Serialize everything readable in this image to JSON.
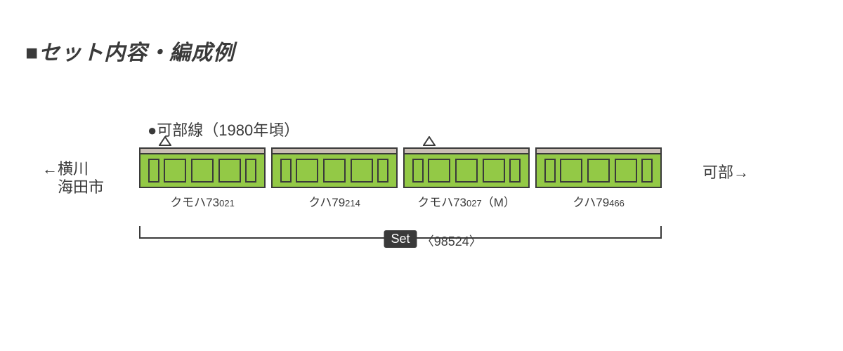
{
  "heading": "■セット内容・編成例",
  "subtitle": "●可部線（1980年頃）",
  "left_destination_line1": "←横川",
  "left_destination_line2": "　海田市",
  "right_destination": "可部→",
  "set_badge": "Set",
  "set_code": "〈98524〉",
  "cars": [
    {
      "label_main": "クモハ73",
      "label_sub": "021",
      "has_panto": true
    },
    {
      "label_main": "クハ79",
      "label_sub": "214",
      "has_panto": false
    },
    {
      "label_main": "クモハ73",
      "label_sub": "027",
      "label_suffix": "（M）",
      "has_panto": true
    },
    {
      "label_main": "クハ79",
      "label_sub": "466",
      "has_panto": false
    }
  ],
  "style": {
    "body_color": "#93c946",
    "roof_color": "#c9beb4",
    "outline_color": "#3a3a3a",
    "background": "#ffffff",
    "heading_fontsize": 30,
    "subtitle_fontsize": 22,
    "label_fontsize": 17,
    "label_sub_fontsize": 13,
    "car_width": 180,
    "car_height": 58,
    "car_gap": 8,
    "door_pattern": [
      "narrow",
      "wide",
      "wide",
      "wide",
      "narrow"
    ]
  }
}
